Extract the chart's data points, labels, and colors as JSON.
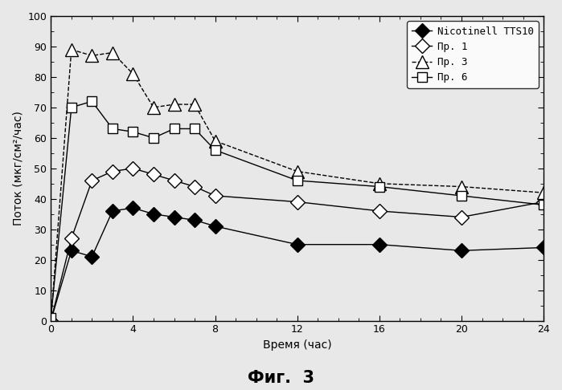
{
  "title": "Фиг.  3",
  "xlabel": "Время (час)",
  "ylabel": "Поток (мкг/см²/час)",
  "xlim": [
    0,
    24
  ],
  "ylim": [
    0,
    100
  ],
  "xticks": [
    0,
    4,
    8,
    12,
    16,
    20,
    24
  ],
  "yticks": [
    0,
    10,
    20,
    30,
    40,
    50,
    60,
    70,
    80,
    90,
    100
  ],
  "series": {
    "Nicotinell TTS10": {
      "x": [
        0,
        1,
        2,
        3,
        4,
        5,
        6,
        7,
        8,
        12,
        16,
        20,
        24
      ],
      "y": [
        0,
        23,
        21,
        36,
        37,
        35,
        34,
        33,
        31,
        25,
        25,
        23,
        24
      ],
      "marker": "D",
      "markerfacecolor": "#000000",
      "markeredgecolor": "#000000",
      "color": "#000000",
      "markersize": 9,
      "linestyle": "-"
    },
    "Пр. 1": {
      "x": [
        0,
        1,
        2,
        3,
        4,
        5,
        6,
        7,
        8,
        12,
        16,
        20,
        24
      ],
      "y": [
        0,
        27,
        46,
        49,
        50,
        48,
        46,
        44,
        41,
        39,
        36,
        34,
        39
      ],
      "marker": "D",
      "markerfacecolor": "#ffffff",
      "markeredgecolor": "#000000",
      "color": "#000000",
      "markersize": 9,
      "linestyle": "-"
    },
    "Пр. 3": {
      "x": [
        0,
        1,
        2,
        3,
        4,
        5,
        6,
        7,
        8,
        12,
        16,
        20,
        24
      ],
      "y": [
        0,
        89,
        87,
        88,
        81,
        70,
        71,
        71,
        59,
        49,
        45,
        44,
        42
      ],
      "marker": "^",
      "markerfacecolor": "#ffffff",
      "markeredgecolor": "#000000",
      "color": "#000000",
      "markersize": 11,
      "linestyle": "--"
    },
    "Пр. 6": {
      "x": [
        0,
        1,
        2,
        3,
        4,
        5,
        6,
        7,
        8,
        12,
        16,
        20,
        24
      ],
      "y": [
        1,
        70,
        72,
        63,
        62,
        60,
        63,
        63,
        56,
        46,
        44,
        41,
        38
      ],
      "marker": "s",
      "markerfacecolor": "#ffffff",
      "markeredgecolor": "#000000",
      "color": "#000000",
      "markersize": 9,
      "linestyle": "-"
    }
  },
  "legend_order": [
    "Nicotinell TTS10",
    "Пр. 1",
    "Пр. 3",
    "Пр. 6"
  ],
  "background_color": "#e8e8e8",
  "plot_bg_color": "#e8e8e8"
}
